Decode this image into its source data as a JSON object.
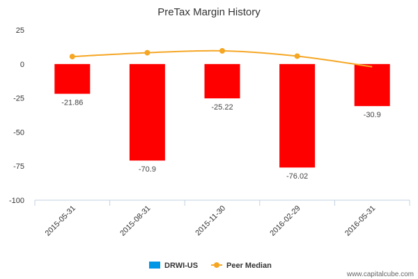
{
  "chart_data": {
    "type": "bar",
    "title": "PreTax Margin History",
    "categories": [
      "2015-05-31",
      "2015-08-31",
      "2015-11-30",
      "2016-02-29",
      "2016-05-31"
    ],
    "series": [
      {
        "name": "DRWI-US",
        "type": "bar",
        "values": [
          -21.86,
          -70.9,
          -25.22,
          -76.02,
          -30.9
        ],
        "data_labels": [
          "-21.86",
          "-70.9",
          "-25.22",
          "-76.02",
          "-30.9"
        ],
        "bar_color": "#ff0000",
        "legend_color": "#0096e6"
      },
      {
        "name": "Peer Median",
        "type": "line",
        "values": [
          5.5,
          8.3,
          9.7,
          5.8,
          -2
        ],
        "color": "#f5a623"
      }
    ],
    "y_ticks": [
      "25",
      "0",
      "-25",
      "-50",
      "-75",
      "-100"
    ],
    "ylim": [
      -100,
      25
    ],
    "grid": false,
    "legend_position": "bottom-center"
  },
  "footer": {
    "source": "www.capitalcube.com"
  }
}
